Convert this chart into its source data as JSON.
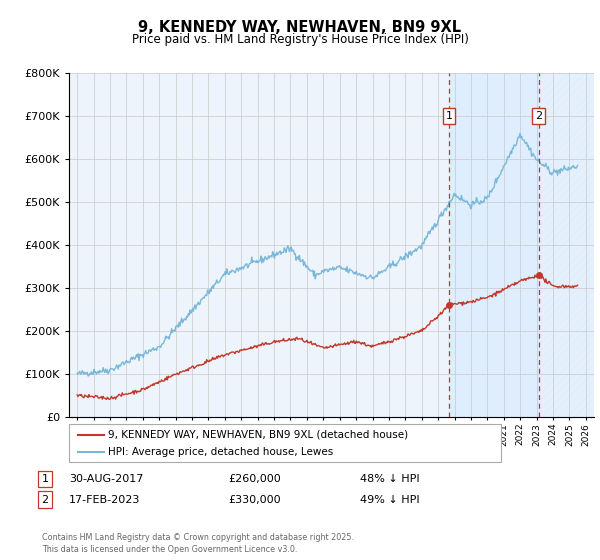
{
  "title": "9, KENNEDY WAY, NEWHAVEN, BN9 9XL",
  "subtitle": "Price paid vs. HM Land Registry's House Price Index (HPI)",
  "ylim": [
    0,
    800000
  ],
  "xlim_start": 1994.5,
  "xlim_end": 2026.5,
  "hpi_color": "#7ab8d9",
  "price_color": "#c0392b",
  "dashed_color": "#c0392b",
  "shade_color": "#ddeeff",
  "background_color": "#eef4fb",
  "grid_color": "#c8c8c8",
  "transaction1": {
    "date_label": "30-AUG-2017",
    "date_x": 2017.66,
    "price": 260000,
    "label": "48% ↓ HPI",
    "num": "1"
  },
  "transaction2": {
    "date_label": "17-FEB-2023",
    "date_x": 2023.12,
    "price": 330000,
    "label": "49% ↓ HPI",
    "num": "2"
  },
  "legend_line1": "9, KENNEDY WAY, NEWHAVEN, BN9 9XL (detached house)",
  "legend_line2": "HPI: Average price, detached house, Lewes",
  "footer": "Contains HM Land Registry data © Crown copyright and database right 2025.\nThis data is licensed under the Open Government Licence v3.0."
}
